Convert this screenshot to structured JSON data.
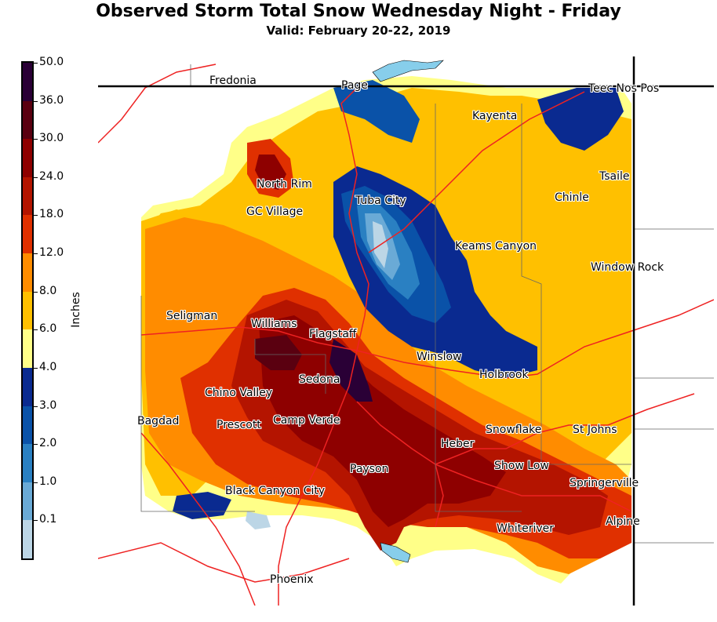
{
  "title": "Observed Storm Total Snow Wednesday Night - Friday",
  "subtitle": "Valid: February 20-22, 2019",
  "colorbar": {
    "label": "Inches",
    "ticks": [
      "50.0",
      "36.0",
      "30.0",
      "24.0",
      "18.0",
      "12.0",
      "8.0",
      "6.0",
      "4.0",
      "3.0",
      "2.0",
      "1.0",
      "0.1"
    ],
    "colors": [
      "#2a0036",
      "#5a0010",
      "#8e0000",
      "#b41400",
      "#e03000",
      "#ff8c00",
      "#ffc000",
      "#ffff88",
      "#0a2a90",
      "#0a52a8",
      "#2a80c2",
      "#6aaad6",
      "#bcd6e6"
    ]
  },
  "cities": [
    {
      "name": "Fredonia"
    },
    {
      "name": "Page"
    },
    {
      "name": "Teec Nos Pos"
    },
    {
      "name": "Kayenta"
    },
    {
      "name": "Tsaile"
    },
    {
      "name": "North Rim"
    },
    {
      "name": "Chinle"
    },
    {
      "name": "Tuba City"
    },
    {
      "name": "GC Village"
    },
    {
      "name": "Keams Canyon"
    },
    {
      "name": "Window Rock"
    },
    {
      "name": "Seligman"
    },
    {
      "name": "Williams"
    },
    {
      "name": "Flagstaff"
    },
    {
      "name": "Winslow"
    },
    {
      "name": "Holbrook"
    },
    {
      "name": "Sedona"
    },
    {
      "name": "Chino Valley"
    },
    {
      "name": "Bagdad"
    },
    {
      "name": "Prescott"
    },
    {
      "name": "Camp Verde"
    },
    {
      "name": "Snowflake"
    },
    {
      "name": "St Johns"
    },
    {
      "name": "Heber"
    },
    {
      "name": "Show Low"
    },
    {
      "name": "Payson"
    },
    {
      "name": "Springerville"
    },
    {
      "name": "Black Canyon City"
    },
    {
      "name": "Alpine"
    },
    {
      "name": "Whiteriver"
    },
    {
      "name": "Phoenix"
    }
  ]
}
